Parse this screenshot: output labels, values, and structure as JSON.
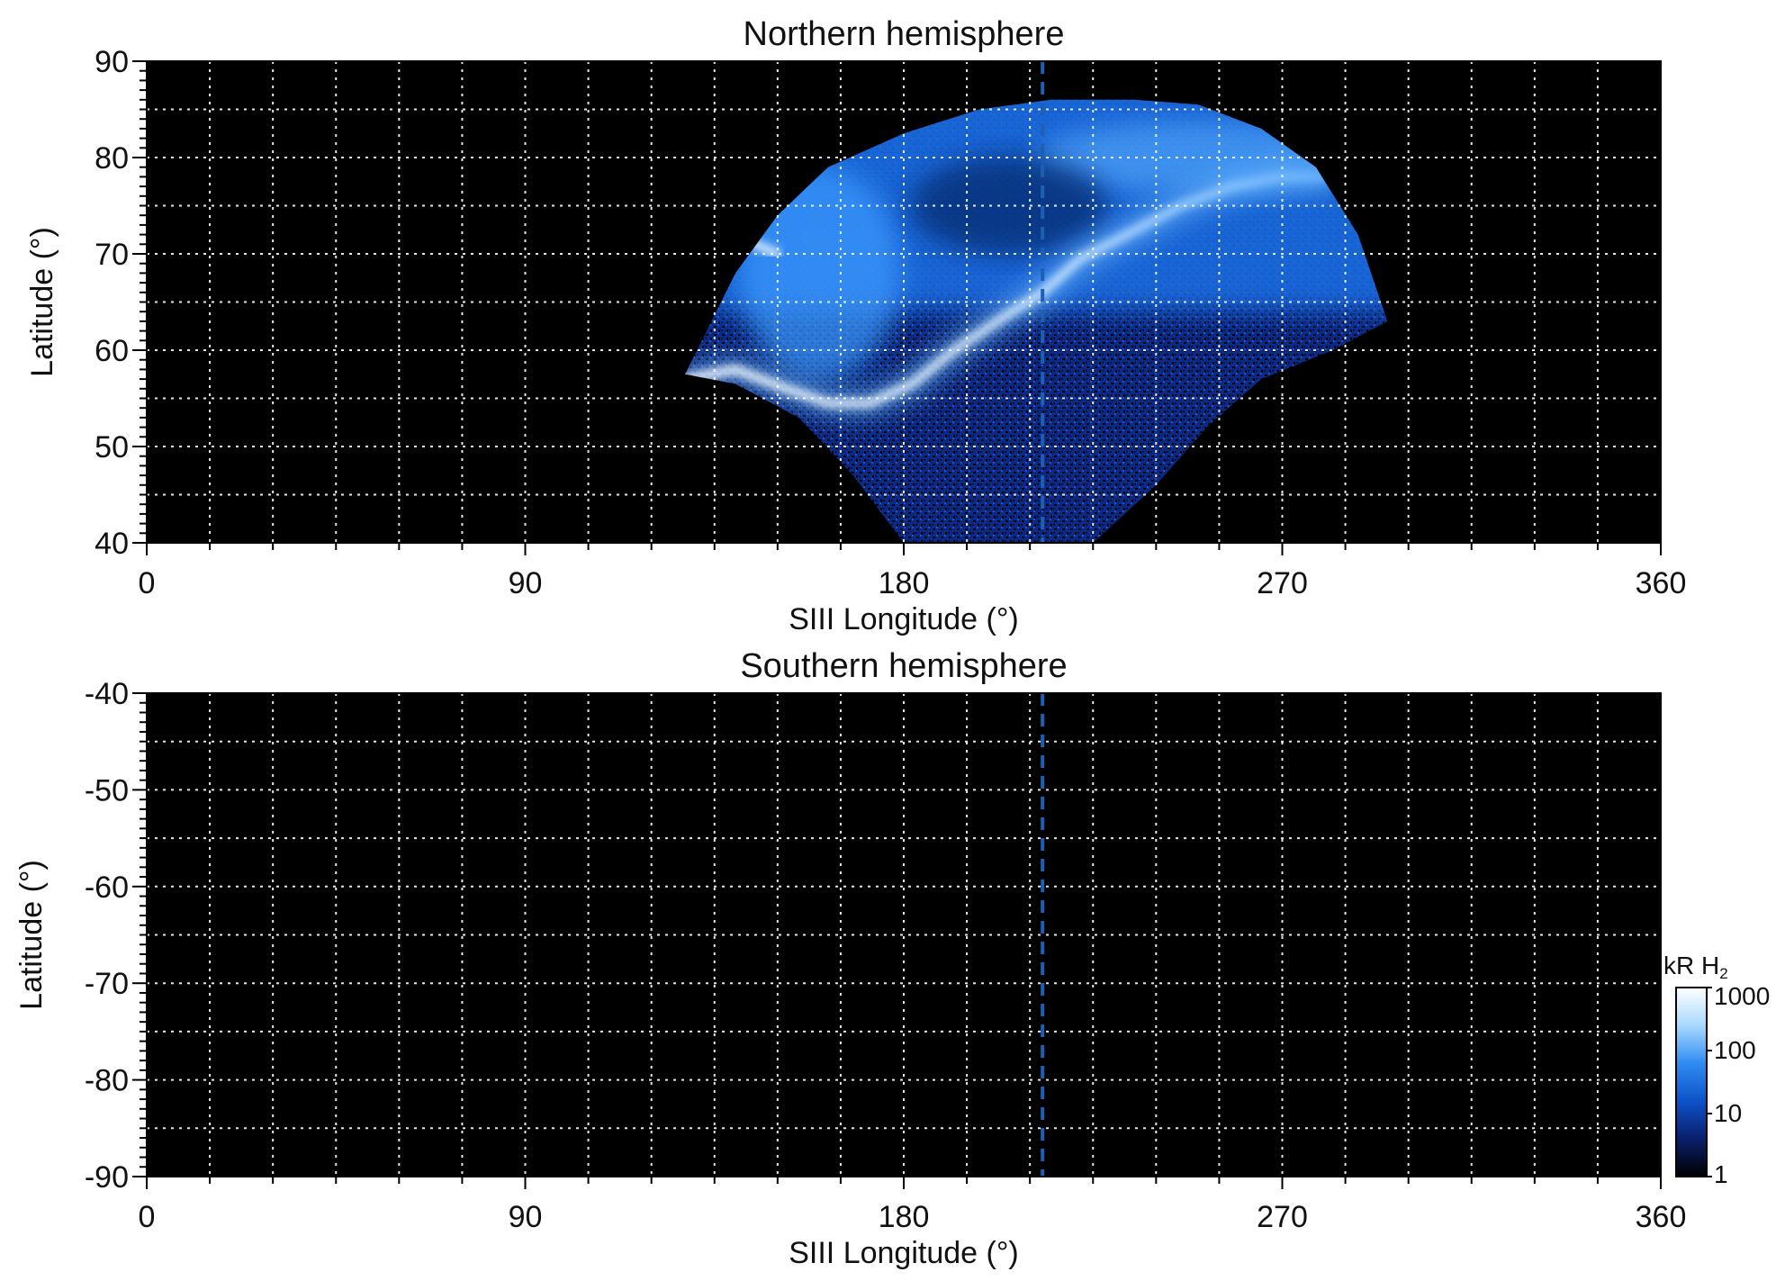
{
  "colors": {
    "background": "#000000",
    "grid": "#ffffff",
    "ref_line": "#1e5fb4",
    "colormap": [
      "#000000",
      "#0a1f6b",
      "#0d52c9",
      "#2f8cf2",
      "#a9d9ff",
      "#ffffff"
    ]
  },
  "chart_data": [
    {
      "type": "heatmap",
      "title": "Northern hemisphere",
      "xlabel": "SIII Longitude (°)",
      "ylabel": "Latitude (°)",
      "xlim": [
        0,
        360
      ],
      "ylim": [
        40,
        90
      ],
      "xticks": [
        0,
        90,
        180,
        270,
        360
      ],
      "yticks": [
        40,
        50,
        60,
        70,
        80,
        90
      ],
      "x_grid_step": 15,
      "y_grid_step": 5,
      "grid": true,
      "reference_line_x": 213,
      "coverage_boundary": {
        "top_edge": [
          [
            128,
            57.5
          ],
          [
            140,
            68
          ],
          [
            150,
            74
          ],
          [
            162,
            79
          ],
          [
            180,
            82.5
          ],
          [
            198,
            85
          ],
          [
            215,
            86
          ],
          [
            235,
            86
          ],
          [
            250,
            85.5
          ],
          [
            265,
            83
          ],
          [
            278,
            79
          ],
          [
            288,
            72
          ],
          [
            295,
            63
          ]
        ],
        "bottom_edge": [
          [
            128,
            57.5
          ],
          [
            140,
            56.5
          ],
          [
            155,
            53
          ],
          [
            168,
            47
          ],
          [
            180,
            40
          ],
          [
            225,
            40
          ],
          [
            240,
            46
          ],
          [
            252,
            52
          ],
          [
            265,
            57
          ],
          [
            282,
            60
          ],
          [
            295,
            63
          ]
        ]
      },
      "features": {
        "main_oval": [
          [
            128,
            57
          ],
          [
            140,
            58
          ],
          [
            152,
            56
          ],
          [
            162,
            54.5
          ],
          [
            172,
            54.5
          ],
          [
            182,
            56.5
          ],
          [
            192,
            60
          ],
          [
            204,
            63.5
          ],
          [
            213,
            66
          ],
          [
            222,
            69.5
          ],
          [
            233,
            72
          ],
          [
            246,
            75
          ],
          [
            258,
            77
          ],
          [
            270,
            78
          ],
          [
            280,
            78
          ]
        ],
        "bright_band": [
          [
            134,
            72.5
          ],
          [
            142,
            71.5
          ],
          [
            150,
            70
          ]
        ]
      },
      "colorscale": "log"
    },
    {
      "type": "heatmap",
      "title": "Southern hemisphere",
      "xlabel": "SIII Longitude (°)",
      "ylabel": "Latitude (°)",
      "xlim": [
        0,
        360
      ],
      "ylim": [
        -90,
        -40
      ],
      "xticks": [
        0,
        90,
        180,
        270,
        360
      ],
      "yticks": [
        -40,
        -50,
        -60,
        -70,
        -80,
        -90
      ],
      "x_grid_step": 15,
      "y_grid_step": 5,
      "grid": true,
      "reference_line_x": 213,
      "coverage_boundary": null,
      "colorscale": "log",
      "colorbar": {
        "title": "kR H",
        "title_subscript": "2",
        "range": [
          1,
          1000
        ],
        "ticks": [
          {
            "value": 1,
            "label": "1"
          },
          {
            "value": 10,
            "label": "10"
          },
          {
            "value": 100,
            "label": "100"
          },
          {
            "value": 1000,
            "label": "1000"
          }
        ]
      }
    }
  ]
}
